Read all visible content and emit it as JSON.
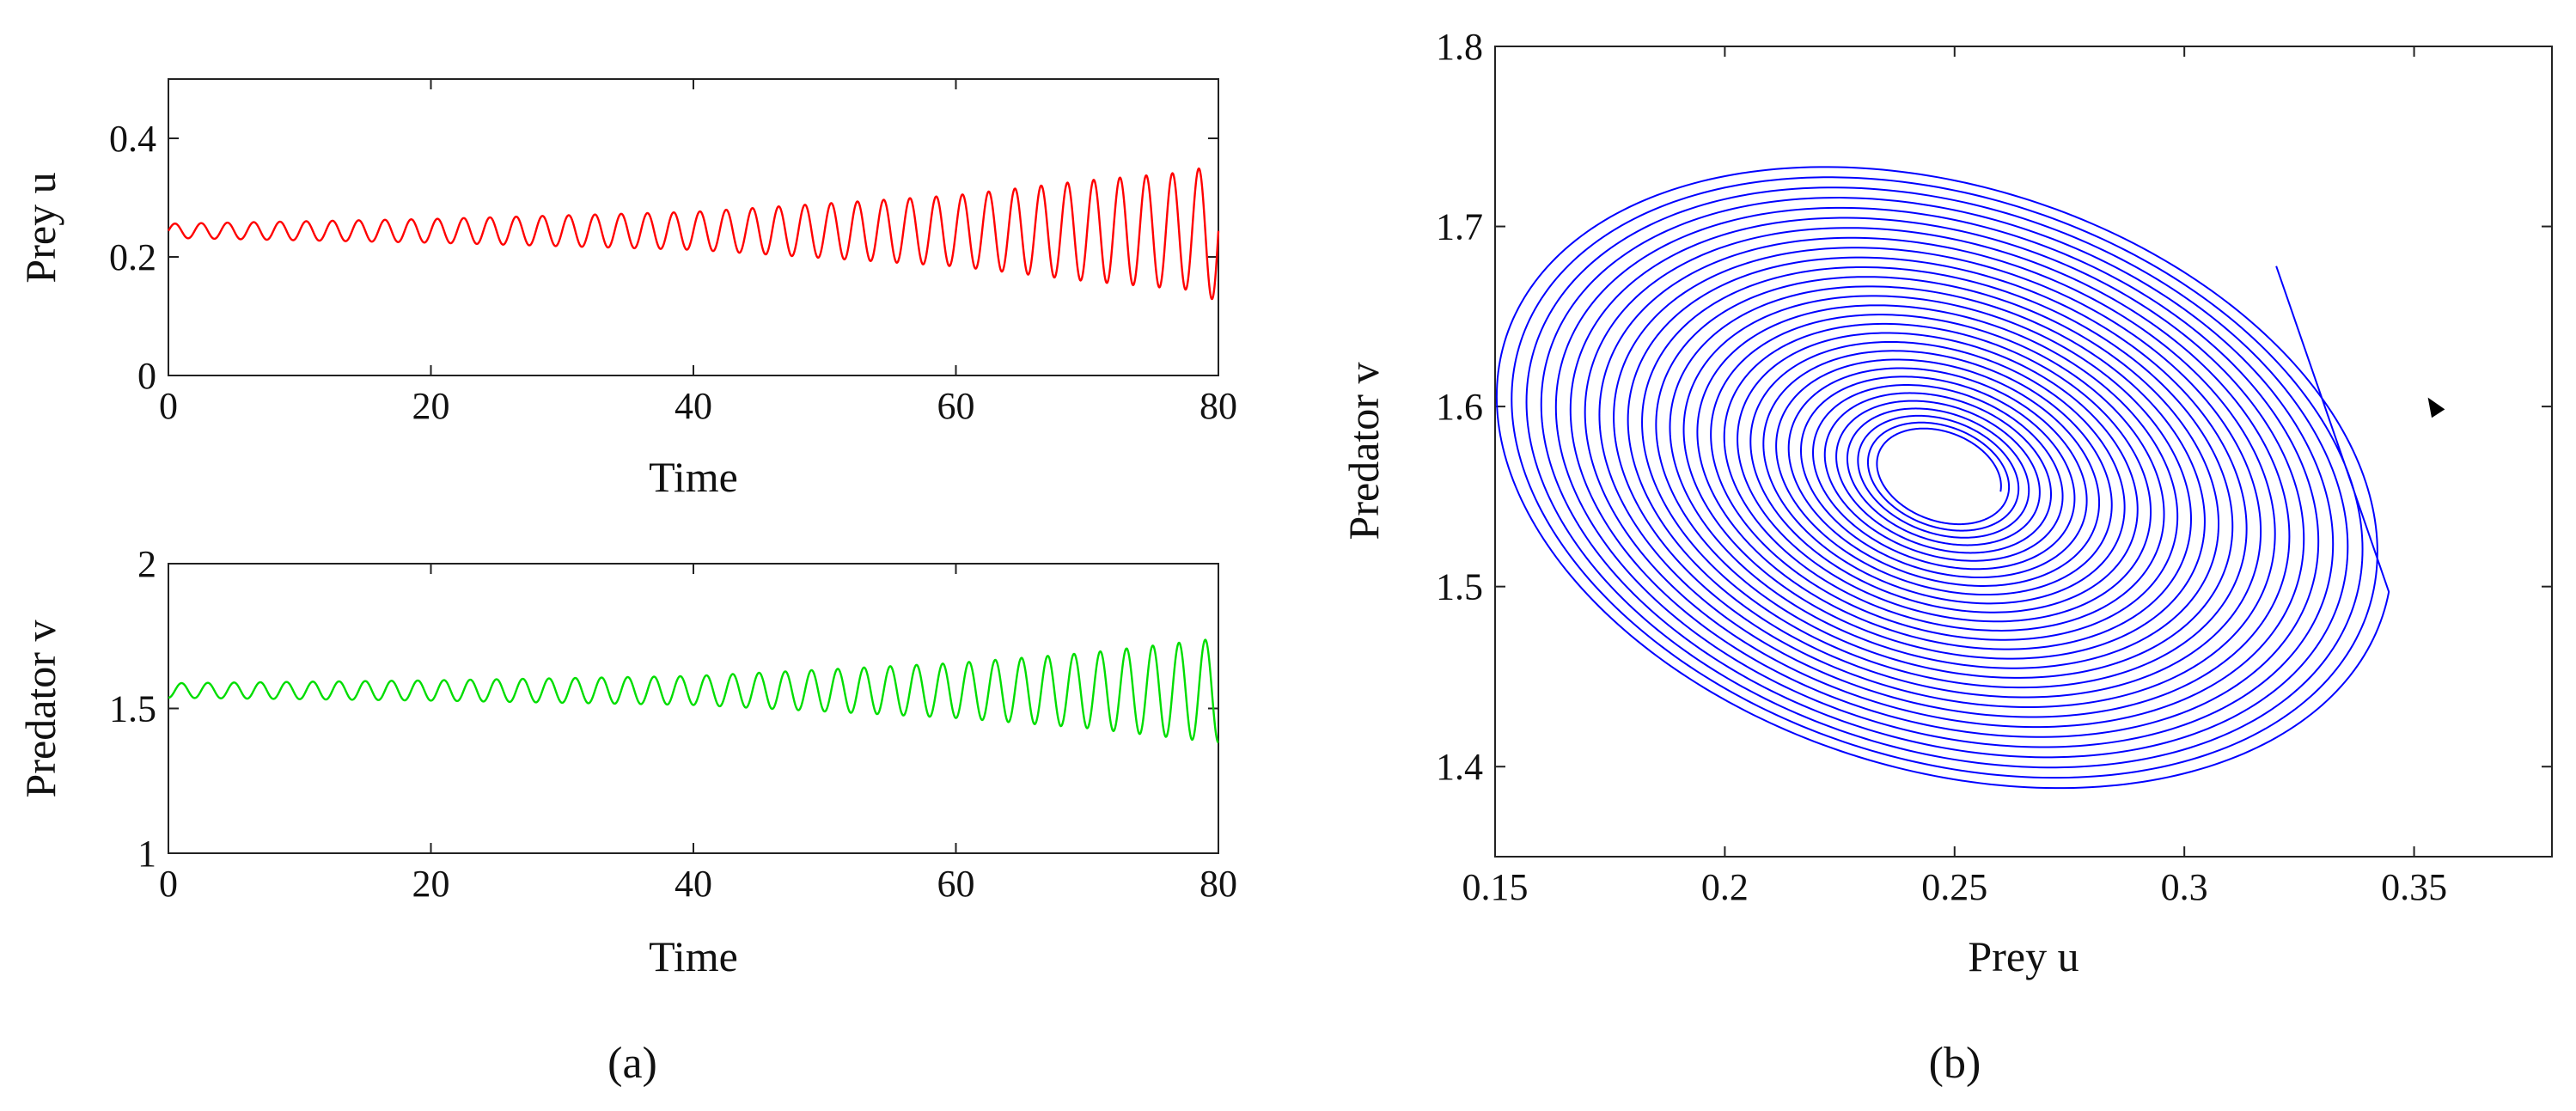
{
  "chart_data": [
    {
      "id": "prey",
      "type": "line",
      "panel": "(a)",
      "xlabel": "Time",
      "ylabel": "Prey u",
      "xlim": [
        0,
        80
      ],
      "ylim": [
        0,
        0.5
      ],
      "xticks": [
        0,
        20,
        40,
        60,
        80
      ],
      "yticks": [
        0,
        0.2,
        0.4
      ],
      "xtick_labels": [
        "0",
        "20",
        "40",
        "60",
        "80"
      ],
      "ytick_labels": [
        "0",
        "0.2",
        "0.4"
      ],
      "grid": false,
      "color": "#ff0000",
      "series": [
        {
          "equilibrium": 0.244,
          "period": 2.0,
          "x_range": [
            0,
            80
          ],
          "amplitude_at": [
            [
              0,
              0.012
            ],
            [
              20,
              0.02
            ],
            [
              40,
              0.032
            ],
            [
              60,
              0.06
            ],
            [
              70,
              0.085
            ],
            [
              78,
              0.1
            ],
            [
              80,
              0.12
            ]
          ]
        }
      ]
    },
    {
      "id": "predator",
      "type": "line",
      "panel": "(a)",
      "xlabel": "Time",
      "ylabel": "Predator v",
      "xlim": [
        0,
        80
      ],
      "ylim": [
        1,
        2
      ],
      "xticks": [
        0,
        20,
        40,
        60,
        80
      ],
      "yticks": [
        1,
        1.5,
        2
      ],
      "xtick_labels": [
        "0",
        "20",
        "40",
        "60",
        "80"
      ],
      "ytick_labels": [
        "1",
        "1.5",
        "2"
      ],
      "grid": false,
      "color": "#00dd00",
      "series": [
        {
          "equilibrium": 1.562,
          "period": 2.0,
          "x_range": [
            0,
            80
          ],
          "amplitude_at": [
            [
              0,
              0.025
            ],
            [
              20,
              0.035
            ],
            [
              40,
              0.05
            ],
            [
              60,
              0.095
            ],
            [
              70,
              0.13
            ],
            [
              78,
              0.17
            ],
            [
              80,
              0.18
            ]
          ]
        }
      ]
    },
    {
      "id": "phase",
      "type": "line",
      "panel": "(b)",
      "xlabel": "Prey u",
      "ylabel": "Predator v",
      "xlim": [
        0.15,
        0.38
      ],
      "ylim": [
        1.35,
        1.8
      ],
      "xticks": [
        0.15,
        0.2,
        0.25,
        0.3,
        0.35
      ],
      "yticks": [
        1.4,
        1.5,
        1.6,
        1.7,
        1.8
      ],
      "xtick_labels": [
        "0.15",
        "0.2",
        "0.25",
        "0.3",
        "0.35"
      ],
      "ytick_labels": [
        "1.4",
        "1.5",
        "1.6",
        "1.7",
        "1.8"
      ],
      "grid": false,
      "color": "#0000ff",
      "arrow_color": "#000000",
      "series": [
        {
          "center": [
            0.247,
            1.562
          ],
          "ellipse_start": [
            0.014,
            0.025
          ],
          "ellipse_end": [
            0.105,
            0.175
          ],
          "turns": 30,
          "start": [
            0.32,
            1.678
          ],
          "arrow_at": [
            0.353,
            1.605
          ]
        }
      ]
    }
  ],
  "captions": {
    "a": "(a)",
    "b": "(b)"
  }
}
